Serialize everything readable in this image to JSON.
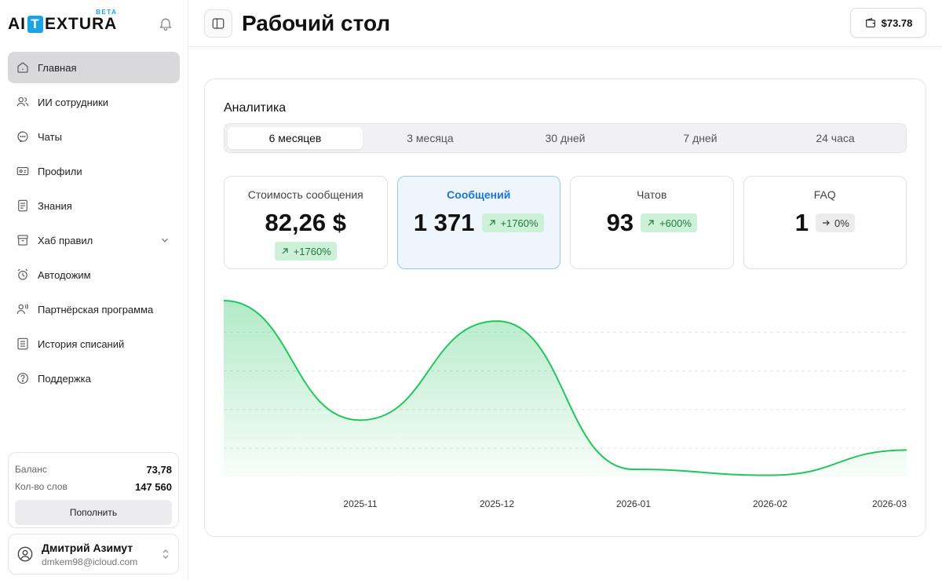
{
  "brand": {
    "logo_left": "AI",
    "logo_t": "T",
    "logo_right": "EXTURA",
    "beta": "BETA"
  },
  "sidebar": {
    "items": [
      {
        "label": "Главная",
        "icon": "home-icon"
      },
      {
        "label": "ИИ сотрудники",
        "icon": "users-icon"
      },
      {
        "label": "Чаты",
        "icon": "chat-icon"
      },
      {
        "label": "Профили",
        "icon": "profile-card-icon"
      },
      {
        "label": "Знания",
        "icon": "document-icon"
      },
      {
        "label": "Хаб правил",
        "icon": "archive-icon"
      },
      {
        "label": "Автодожим",
        "icon": "alarm-clock-icon"
      },
      {
        "label": "Партнёрская программа",
        "icon": "partner-icon"
      },
      {
        "label": "История списаний",
        "icon": "list-icon"
      },
      {
        "label": "Поддержка",
        "icon": "help-icon"
      }
    ],
    "balance": {
      "balance_label": "Баланс",
      "balance_value": "73,78",
      "words_label": "Кол-во слов",
      "words_value": "147 560",
      "topup_label": "Пополнить"
    },
    "user": {
      "name": "Дмитрий Азимут",
      "email": "dmkem98@icloud.com"
    }
  },
  "header": {
    "title": "Рабочий стол",
    "wallet": "$73.78"
  },
  "analytics": {
    "title": "Аналитика",
    "tabs": [
      "6 месяцев",
      "3 месяца",
      "30 дней",
      "7 дней",
      "24 часа"
    ],
    "active_tab": "6 месяцев",
    "stats": [
      {
        "label": "Стоимость сообщения",
        "value": "82,26 $",
        "badge": "+1760%",
        "trend": "up"
      },
      {
        "label": "Сообщений",
        "value": "1 371",
        "badge": "+1760%",
        "trend": "up"
      },
      {
        "label": "Чатов",
        "value": "93",
        "badge": "+600%",
        "trend": "up"
      },
      {
        "label": "FAQ",
        "value": "1",
        "badge": "0%",
        "trend": "flat"
      }
    ]
  },
  "colors": {
    "accent": "#1a73d6",
    "line": "#22c55e",
    "active_nav": "#d9d9dc",
    "badge_up": "#cdf0d9"
  },
  "chart_data": {
    "type": "area",
    "title": "",
    "x": [
      0,
      1,
      2,
      3,
      4,
      5
    ],
    "categories": [
      "",
      "2025-11",
      "2025-12",
      "2026-01",
      "2026-02",
      "2026-03"
    ],
    "values": [
      300,
      96,
      265,
      12,
      2,
      45
    ],
    "ylim": [
      0,
      300
    ],
    "xlabel": "",
    "ylabel": "",
    "grid": true
  }
}
